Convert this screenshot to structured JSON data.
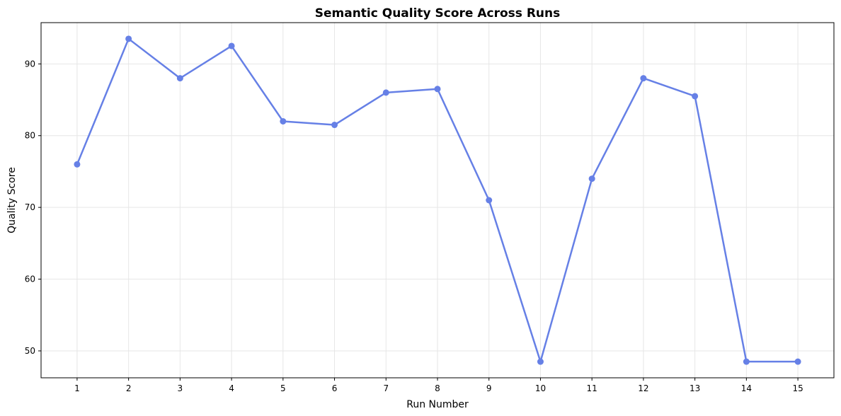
{
  "chart_data": {
    "type": "line",
    "title": "Semantic Quality Score Across Runs",
    "xlabel": "Run Number",
    "ylabel": "Quality Score",
    "x": [
      1,
      2,
      3,
      4,
      5,
      6,
      7,
      8,
      9,
      10,
      11,
      12,
      13,
      14,
      15
    ],
    "series": [
      {
        "values": [
          76,
          93.5,
          88,
          92.5,
          82,
          81.5,
          86,
          86.5,
          71,
          48.5,
          74,
          88,
          85.5,
          48.5,
          48.5
        ],
        "color": "#6680e6",
        "marker": "circle"
      }
    ],
    "xlim": [
      0.3,
      15.7
    ],
    "ylim": [
      46.25,
      95.75
    ],
    "x_ticks": [
      "1",
      "2",
      "3",
      "4",
      "5",
      "6",
      "7",
      "8",
      "9",
      "10",
      "11",
      "12",
      "13",
      "14",
      "15"
    ],
    "y_ticks": [
      50,
      60,
      70,
      80,
      90
    ],
    "grid": true
  }
}
